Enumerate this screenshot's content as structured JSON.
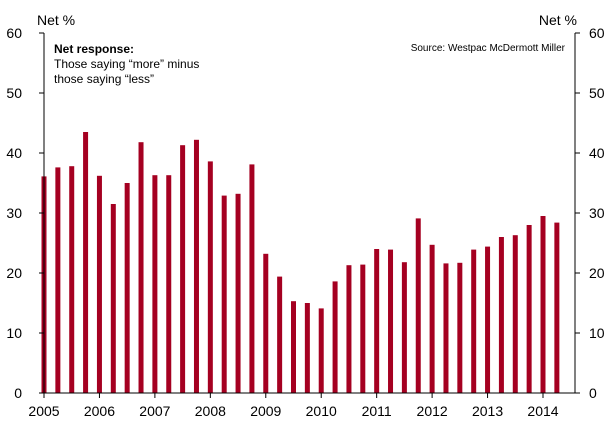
{
  "chart_data": {
    "type": "bar",
    "left_axis_label": "Net %",
    "right_axis_label": "Net %",
    "annotation_title": "Net response:",
    "annotation_lines": [
      "Those saying “more” minus",
      "those saying “less”"
    ],
    "source": "Source: Westpac McDermott Miller",
    "bar_color": "#a50021",
    "ylim": [
      0,
      60
    ],
    "y_ticks": [
      "0",
      "10",
      "20",
      "30",
      "40",
      "50",
      "60"
    ],
    "x_ticks": [
      "2005",
      "2006",
      "2007",
      "2008",
      "2009",
      "2010",
      "2011",
      "2012",
      "2013",
      "2014"
    ],
    "x_start": 2005.0,
    "x_step": 0.25,
    "values": [
      36.1,
      37.6,
      37.8,
      43.5,
      36.2,
      31.5,
      35.0,
      41.8,
      36.3,
      36.3,
      41.3,
      42.2,
      38.6,
      32.9,
      33.2,
      38.1,
      23.2,
      19.4,
      15.3,
      15.0,
      14.1,
      18.6,
      21.3,
      21.4,
      24.0,
      23.9,
      21.8,
      29.1,
      24.7,
      21.6,
      21.7,
      23.9,
      24.4,
      26.0,
      26.3,
      28.0,
      29.5,
      28.4
    ]
  }
}
